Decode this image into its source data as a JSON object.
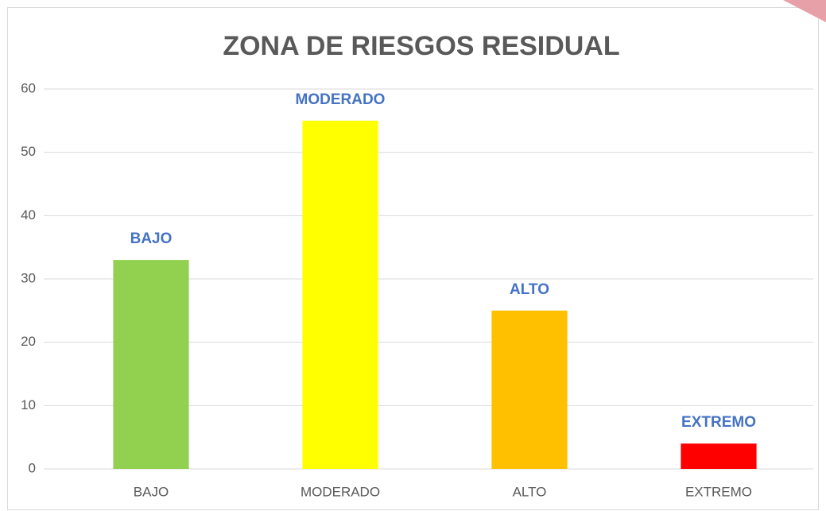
{
  "chart_data": {
    "type": "bar",
    "title": "ZONA DE RIESGOS RESIDUAL",
    "categories": [
      "BAJO",
      "MODERADO",
      "ALTO",
      "EXTREMO"
    ],
    "values": [
      33,
      55,
      25,
      4
    ],
    "colors": [
      "#92d050",
      "#ffff00",
      "#ffc000",
      "#ff0000"
    ],
    "ylim": [
      0,
      60
    ],
    "yticks": [
      0,
      10,
      20,
      30,
      40,
      50,
      60
    ],
    "grid": true
  }
}
